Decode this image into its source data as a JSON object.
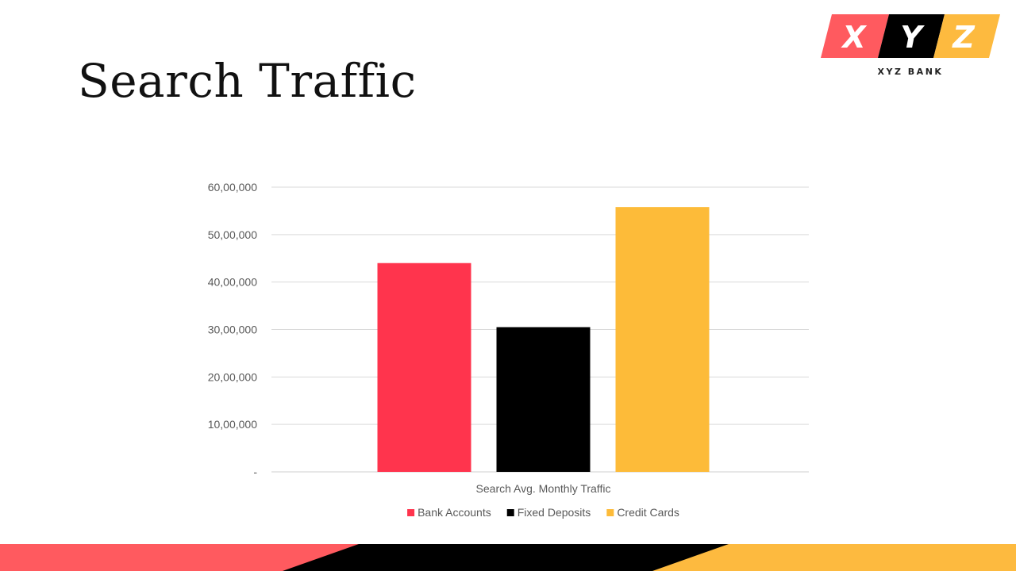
{
  "slide": {
    "title": "Search Traffic"
  },
  "logo": {
    "letters": [
      "X",
      "Y",
      "Z"
    ],
    "caption": "XYZ BANK",
    "colors": [
      "#FF5A5F",
      "#000000",
      "#FDBA3F"
    ]
  },
  "chart_data": {
    "type": "bar",
    "categories": [
      "Search Avg. Monthly Traffic"
    ],
    "xlabel": "",
    "ylabel": "",
    "ylim": [
      0,
      6000000
    ],
    "ticks": [
      {
        "value": 0,
        "label": "-"
      },
      {
        "value": 1000000,
        "label": "10,00,000"
      },
      {
        "value": 2000000,
        "label": "20,00,000"
      },
      {
        "value": 3000000,
        "label": "30,00,000"
      },
      {
        "value": 4000000,
        "label": "40,00,000"
      },
      {
        "value": 5000000,
        "label": "50,00,000"
      },
      {
        "value": 6000000,
        "label": "60,00,000"
      }
    ],
    "grid": true,
    "legend": "bottom",
    "series": [
      {
        "name": "Bank Accounts",
        "values": [
          4400000
        ],
        "color": "#FF344D"
      },
      {
        "name": "Fixed Deposits",
        "values": [
          3050000
        ],
        "color": "#000000"
      },
      {
        "name": "Credit Cards",
        "values": [
          5580000
        ],
        "color": "#FDBB39"
      }
    ]
  },
  "footer": {
    "colors": [
      "#FF5A5F",
      "#000000",
      "#FDBA3F"
    ]
  }
}
